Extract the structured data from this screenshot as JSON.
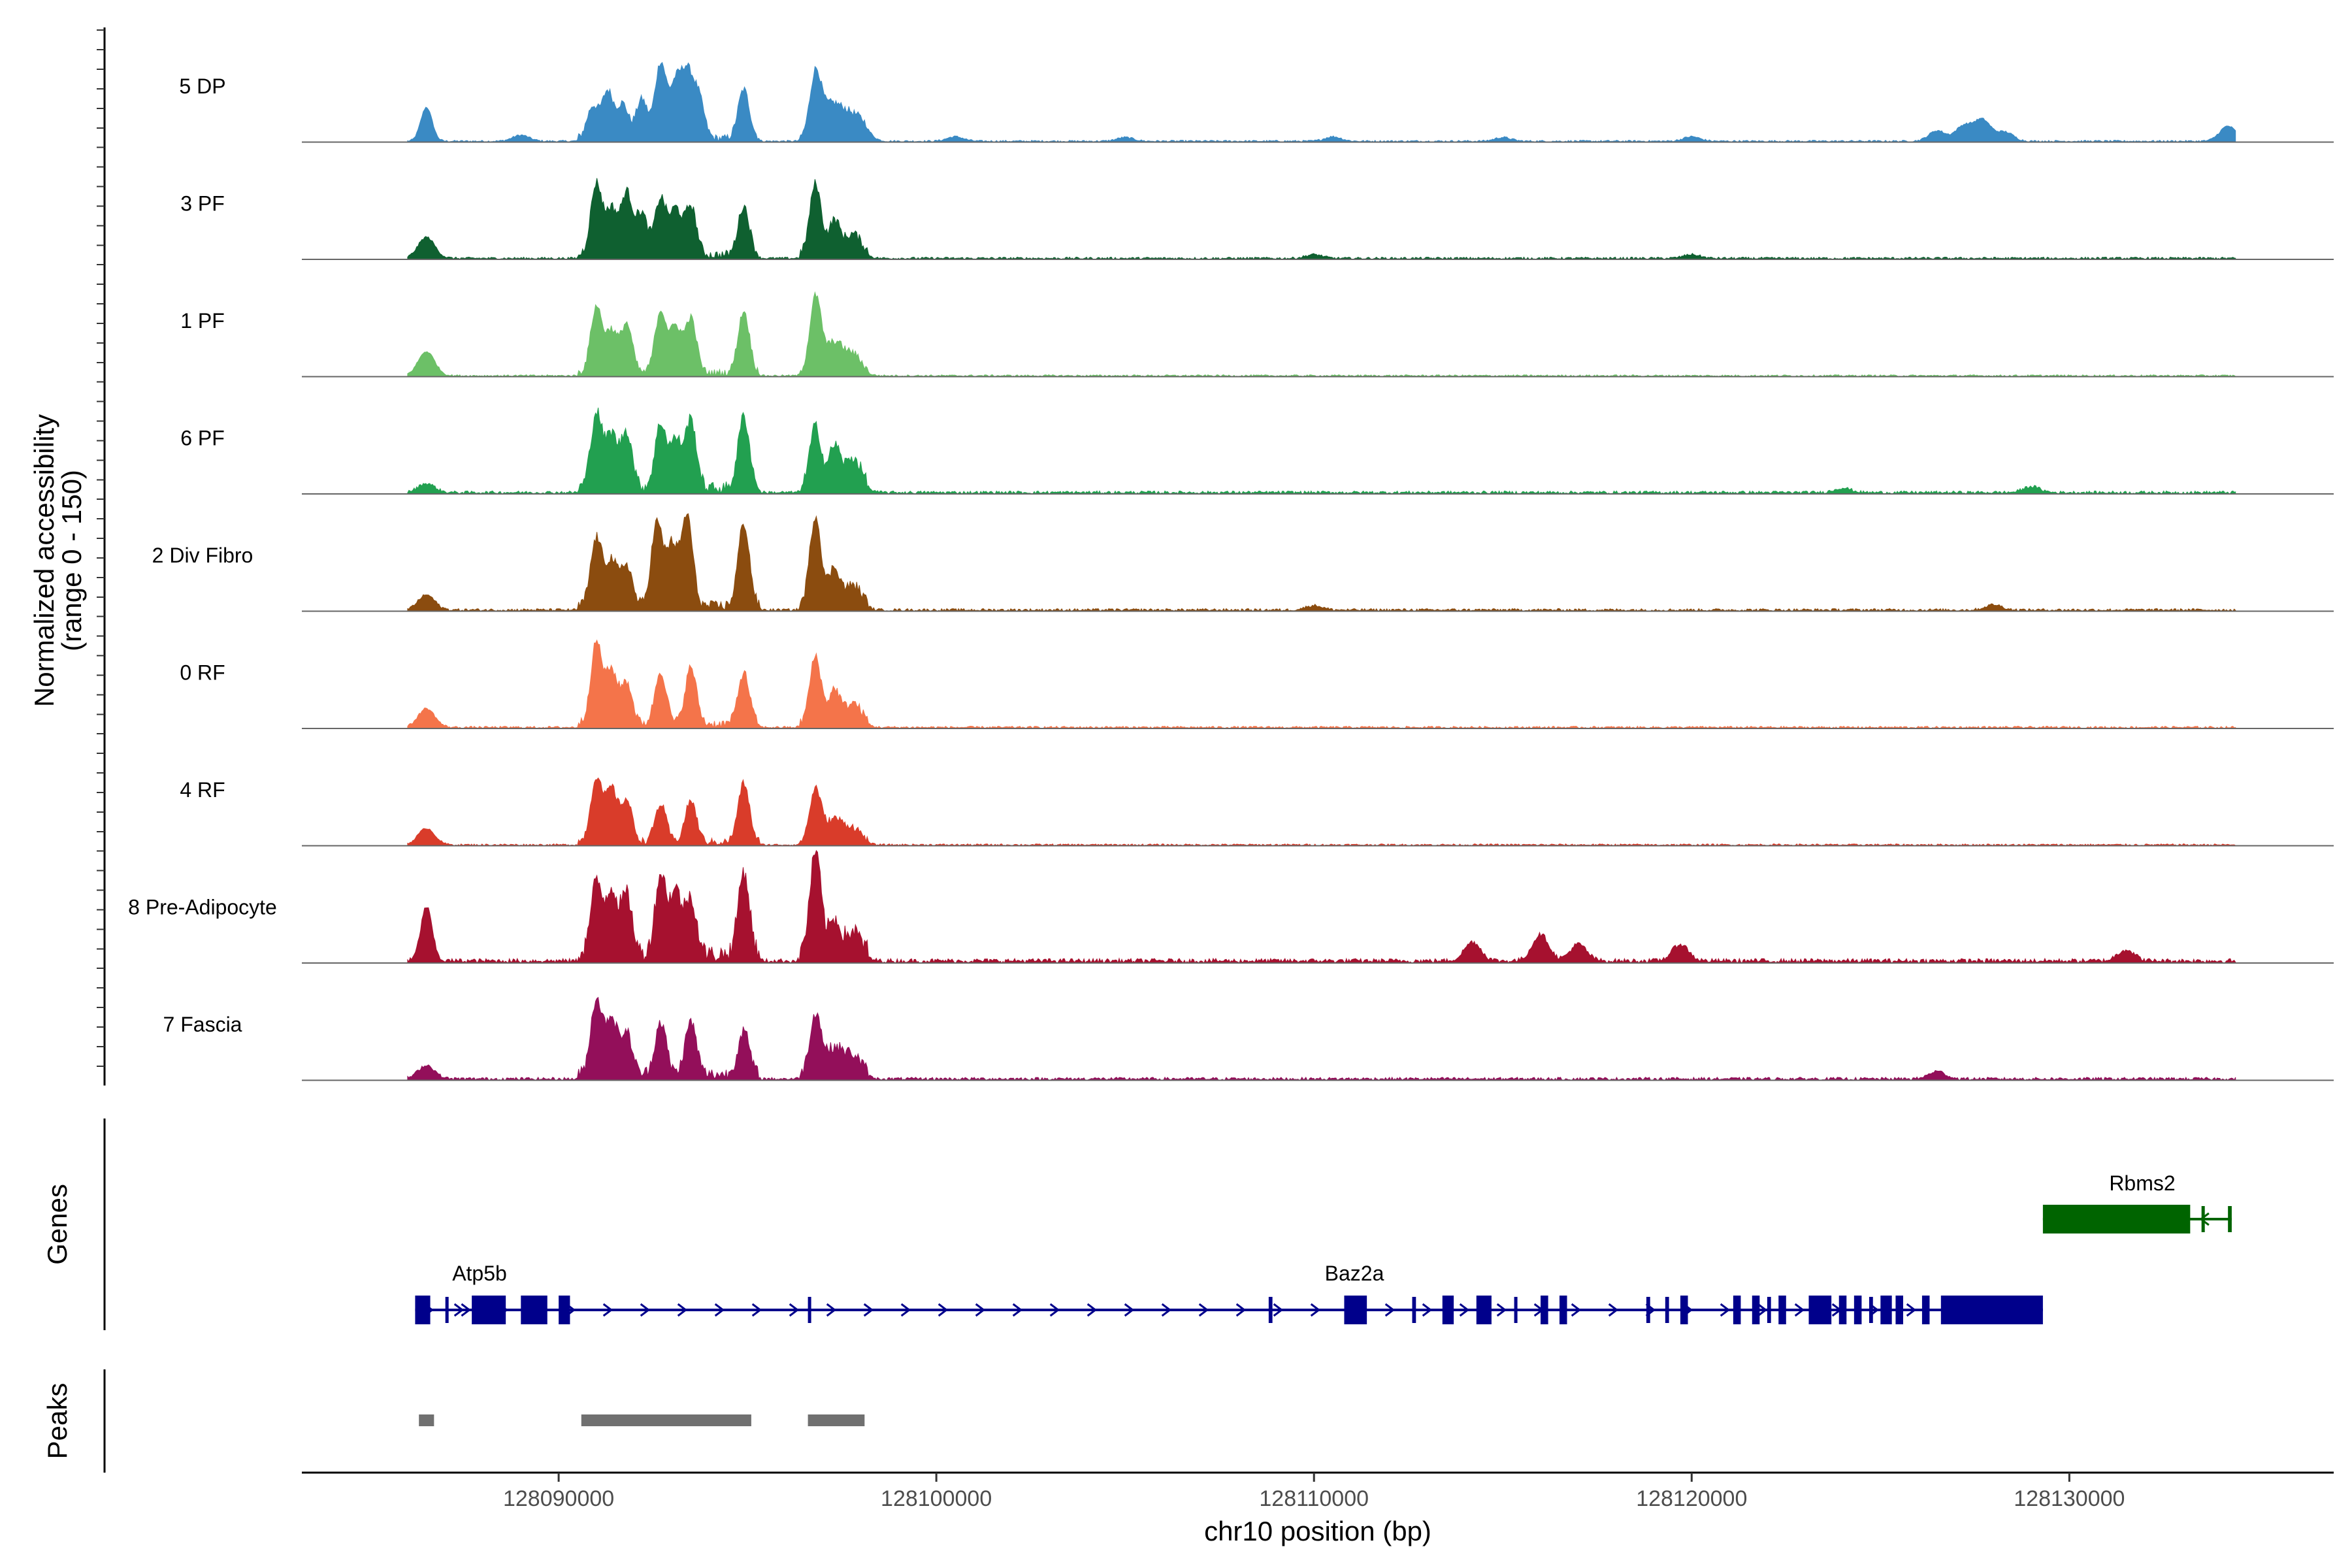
{
  "chart_data": {
    "type": "area",
    "title": "",
    "chromosome": "chr10",
    "xlabel": "chr10 position (bp)",
    "ylabel_line1": "Normalized accessibility",
    "ylabel_line2": "(range 0 - 150)",
    "y_range": [
      0,
      150
    ],
    "xlim": [
      128083200,
      128137000
    ],
    "x_ticks": [
      128090000,
      128100000,
      128110000,
      128120000,
      128130000
    ],
    "x_tick_labels": [
      "128090000",
      "128100000",
      "128110000",
      "128120000",
      "128130000"
    ],
    "genes_panel_label": "Genes",
    "peaks_panel_label": "Peaks",
    "tracks": [
      {
        "name": "5 DP",
        "color": "#3A8AC4",
        "peaks": [
          [
            128086500,
            45
          ],
          [
            128089000,
            8
          ],
          [
            128090900,
            42
          ],
          [
            128091300,
            62
          ],
          [
            128091700,
            45
          ],
          [
            128092200,
            52
          ],
          [
            128092700,
            100
          ],
          [
            128093100,
            70
          ],
          [
            128093400,
            80
          ],
          [
            128093700,
            55
          ],
          [
            128094900,
            65
          ],
          [
            128096800,
            85
          ],
          [
            128097200,
            40
          ],
          [
            128097600,
            28
          ],
          [
            128098000,
            22
          ],
          [
            128100500,
            6
          ],
          [
            128105000,
            5
          ],
          [
            128110500,
            6
          ],
          [
            128115000,
            5
          ],
          [
            128120000,
            6
          ],
          [
            128126500,
            14
          ],
          [
            128127200,
            20
          ],
          [
            128127700,
            28
          ],
          [
            128128300,
            12
          ],
          [
            128134200,
            20
          ]
        ],
        "noise": 2.5
      },
      {
        "name": "3 PF",
        "color": "#0F6030",
        "peaks": [
          [
            128086500,
            28
          ],
          [
            128091000,
            95
          ],
          [
            128091400,
            60
          ],
          [
            128091800,
            82
          ],
          [
            128092200,
            55
          ],
          [
            128092700,
            75
          ],
          [
            128093100,
            60
          ],
          [
            128093500,
            65
          ],
          [
            128094900,
            65
          ],
          [
            128096800,
            95
          ],
          [
            128097300,
            45
          ],
          [
            128097800,
            28
          ],
          [
            128110000,
            5
          ],
          [
            128120000,
            5
          ]
        ],
        "noise": 3
      },
      {
        "name": "1 PF",
        "color": "#6CC067",
        "peaks": [
          [
            128086500,
            32
          ],
          [
            128091000,
            88
          ],
          [
            128091400,
            55
          ],
          [
            128091800,
            65
          ],
          [
            128092700,
            82
          ],
          [
            128093100,
            60
          ],
          [
            128093500,
            72
          ],
          [
            128094900,
            82
          ],
          [
            128096800,
            100
          ],
          [
            128097300,
            40
          ],
          [
            128097800,
            24
          ]
        ],
        "noise": 2.5
      },
      {
        "name": "6 PF",
        "color": "#22A050",
        "peaks": [
          [
            128086500,
            12
          ],
          [
            128091000,
            100
          ],
          [
            128091400,
            70
          ],
          [
            128091800,
            75
          ],
          [
            128092700,
            85
          ],
          [
            128093100,
            62
          ],
          [
            128093500,
            90
          ],
          [
            128094900,
            95
          ],
          [
            128096800,
            82
          ],
          [
            128097300,
            55
          ],
          [
            128097800,
            40
          ],
          [
            128124000,
            6
          ],
          [
            128129000,
            8
          ]
        ],
        "noise": 4
      },
      {
        "name": "2 Div Fibro",
        "color": "#8B4C0F",
        "peaks": [
          [
            128086500,
            20
          ],
          [
            128091000,
            90
          ],
          [
            128091400,
            60
          ],
          [
            128091800,
            55
          ],
          [
            128092600,
            110
          ],
          [
            128093000,
            80
          ],
          [
            128093400,
            120
          ],
          [
            128094900,
            110
          ],
          [
            128096800,
            120
          ],
          [
            128097300,
            50
          ],
          [
            128097800,
            28
          ],
          [
            128110000,
            6
          ],
          [
            128128000,
            7
          ]
        ],
        "noise": 3.5
      },
      {
        "name": "0 RF",
        "color": "#F4744A",
        "peaks": [
          [
            128086500,
            25
          ],
          [
            128091000,
            108
          ],
          [
            128091400,
            70
          ],
          [
            128091800,
            55
          ],
          [
            128092700,
            70
          ],
          [
            128093500,
            75
          ],
          [
            128094900,
            68
          ],
          [
            128096800,
            90
          ],
          [
            128097300,
            45
          ],
          [
            128097800,
            28
          ]
        ],
        "noise": 3
      },
      {
        "name": "4 RF",
        "color": "#D93C2A",
        "peaks": [
          [
            128086500,
            22
          ],
          [
            128091000,
            85
          ],
          [
            128091400,
            70
          ],
          [
            128091800,
            55
          ],
          [
            128092700,
            50
          ],
          [
            128093500,
            55
          ],
          [
            128094900,
            78
          ],
          [
            128096800,
            70
          ],
          [
            128097300,
            30
          ],
          [
            128097800,
            18
          ]
        ],
        "noise": 2.5
      },
      {
        "name": "8 Pre-Adipocyte",
        "color": "#A6112F",
        "peaks": [
          [
            128086500,
            72
          ],
          [
            128091000,
            95
          ],
          [
            128091400,
            85
          ],
          [
            128091800,
            78
          ],
          [
            128092700,
            105
          ],
          [
            128093100,
            82
          ],
          [
            128093500,
            75
          ],
          [
            128094900,
            110
          ],
          [
            128096800,
            135
          ],
          [
            128097300,
            45
          ],
          [
            128097800,
            30
          ],
          [
            128114200,
            25
          ],
          [
            128116000,
            35
          ],
          [
            128117000,
            22
          ],
          [
            128119700,
            22
          ],
          [
            128131500,
            15
          ]
        ],
        "noise": 6
      },
      {
        "name": "7 Fascia",
        "color": "#930F5A",
        "peaks": [
          [
            128086500,
            18
          ],
          [
            128091000,
            100
          ],
          [
            128091400,
            75
          ],
          [
            128091800,
            55
          ],
          [
            128092700,
            70
          ],
          [
            128093500,
            70
          ],
          [
            128094900,
            58
          ],
          [
            128096800,
            80
          ],
          [
            128097300,
            35
          ],
          [
            128097800,
            25
          ],
          [
            128126500,
            10
          ]
        ],
        "noise": 4
      }
    ],
    "genes": [
      {
        "name": "Atp5b",
        "strand": "+",
        "color": "#00008B",
        "start": 128086200,
        "end": 128090300,
        "exons": [
          [
            128086200,
            128086600
          ],
          [
            128087700,
            128088600
          ],
          [
            128089000,
            128089700
          ],
          [
            128090000,
            128090300
          ]
        ]
      },
      {
        "name": "Baz2a",
        "strand": "+",
        "color": "#00008B",
        "start": 128087000,
        "end": 128129300,
        "exons": [
          [
            128087000,
            128087050
          ],
          [
            128096600,
            128096650
          ],
          [
            128108800,
            128108900
          ],
          [
            128110800,
            128111400
          ],
          [
            128112600,
            128112700
          ],
          [
            128113400,
            128113700
          ],
          [
            128114300,
            128114700
          ],
          [
            128115300,
            128115350
          ],
          [
            128116000,
            128116200
          ],
          [
            128116500,
            128116700
          ],
          [
            128118800,
            128118900
          ],
          [
            128119300,
            128119400
          ],
          [
            128119700,
            128119900
          ],
          [
            128121100,
            128121300
          ],
          [
            128121600,
            128121800
          ],
          [
            128122000,
            128122100
          ],
          [
            128122300,
            128122500
          ],
          [
            128123100,
            128123700
          ],
          [
            128123900,
            128124100
          ],
          [
            128124300,
            128124500
          ],
          [
            128124700,
            128124800
          ],
          [
            128125000,
            128125300
          ],
          [
            128125400,
            128125600
          ],
          [
            128126100,
            128126300
          ],
          [
            128126600,
            128129300
          ]
        ]
      },
      {
        "name": "Rbms2",
        "strand": "-",
        "color": "#006400",
        "start": 128129300,
        "end": 128134300,
        "exons": [
          [
            128129300,
            128133200
          ],
          [
            128133500,
            128133550
          ],
          [
            128134200,
            128134300
          ]
        ]
      }
    ],
    "peaks": [
      {
        "start": 128086300,
        "end": 128086700
      },
      {
        "start": 128090600,
        "end": 128095100
      },
      {
        "start": 128096600,
        "end": 128098100
      }
    ]
  }
}
